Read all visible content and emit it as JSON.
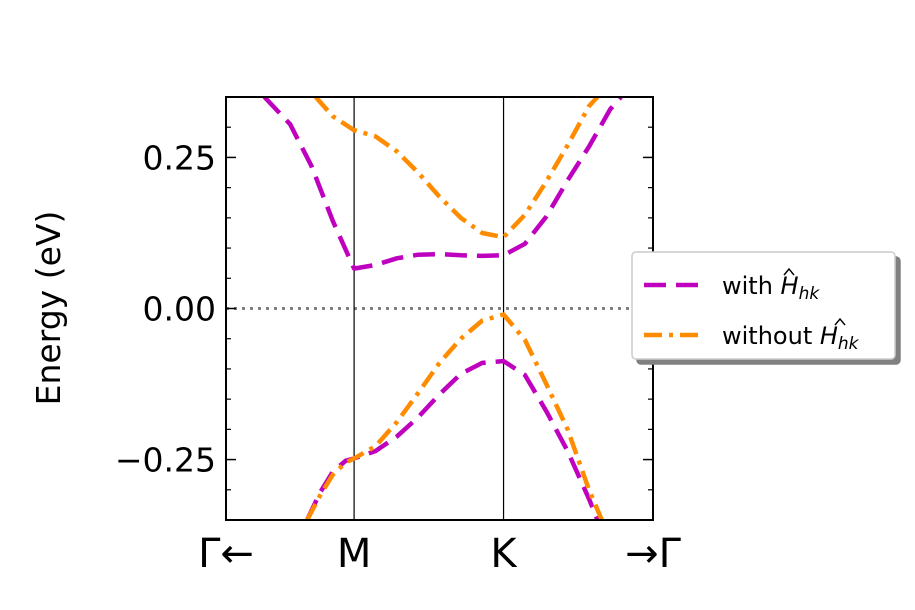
{
  "chart_data": {
    "type": "line",
    "title": "",
    "xlabel": "",
    "ylabel": "Energy (eV)",
    "ylim": [
      -0.35,
      0.35
    ],
    "xlim": [
      0,
      1
    ],
    "yticks": [
      -0.25,
      0.0,
      0.25
    ],
    "ytick_labels": [
      "−0.25",
      "0.00",
      "0.25"
    ],
    "xticks": [
      {
        "x": 0.0,
        "label": "Γ←"
      },
      {
        "x": 0.3,
        "label": "M"
      },
      {
        "x": 0.65,
        "label": "K"
      },
      {
        "x": 1.0,
        "label": "→Γ"
      }
    ],
    "vlines": [
      0.3,
      0.65
    ],
    "hline": {
      "y": 0.0,
      "style": "dotted",
      "color": "#808080"
    },
    "grid": false,
    "legend_location": "right, outside plot",
    "legend_labels": [
      {
        "pre": "with ",
        "sym": "H",
        "sub": "hk"
      },
      {
        "pre": "without ",
        "sym": "H",
        "sub": "hk"
      }
    ],
    "series": [
      {
        "name": "with H_hk",
        "color": "#bf00bf",
        "dash": "dashed",
        "bands": [
          {
            "x": [
              0.09,
              0.15,
              0.2,
              0.25,
              0.3,
              0.35,
              0.4,
              0.45,
              0.5,
              0.55,
              0.6,
              0.65,
              0.7,
              0.75,
              0.8,
              0.85,
              0.9,
              0.925
            ],
            "y": [
              0.35,
              0.305,
              0.236,
              0.145,
              0.066,
              0.072,
              0.083,
              0.089,
              0.09,
              0.088,
              0.087,
              0.088,
              0.107,
              0.152,
              0.212,
              0.268,
              0.33,
              0.35
            ]
          },
          {
            "x": [
              0.19,
              0.22,
              0.25,
              0.28,
              0.3,
              0.35,
              0.4,
              0.45,
              0.5,
              0.55,
              0.6,
              0.65,
              0.7,
              0.75,
              0.8,
              0.85,
              0.87
            ],
            "y": [
              -0.35,
              -0.305,
              -0.27,
              -0.252,
              -0.248,
              -0.236,
              -0.212,
              -0.18,
              -0.142,
              -0.108,
              -0.09,
              -0.087,
              -0.11,
              -0.17,
              -0.236,
              -0.315,
              -0.35
            ]
          }
        ]
      },
      {
        "name": "without H_hk",
        "color": "#ff8c00",
        "dash": "dashdot",
        "bands": [
          {
            "x": [
              0.21,
              0.25,
              0.3,
              0.35,
              0.4,
              0.45,
              0.5,
              0.55,
              0.6,
              0.65,
              0.7,
              0.75,
              0.8,
              0.85,
              0.87
            ],
            "y": [
              0.35,
              0.318,
              0.295,
              0.285,
              0.26,
              0.225,
              0.185,
              0.15,
              0.125,
              0.118,
              0.155,
              0.21,
              0.27,
              0.335,
              0.35
            ]
          },
          {
            "x": [
              0.19,
              0.22,
              0.25,
              0.28,
              0.3,
              0.35,
              0.4,
              0.45,
              0.5,
              0.55,
              0.6,
              0.65,
              0.7,
              0.75,
              0.8,
              0.85,
              0.88
            ],
            "y": [
              -0.35,
              -0.31,
              -0.275,
              -0.255,
              -0.248,
              -0.228,
              -0.188,
              -0.14,
              -0.09,
              -0.05,
              -0.02,
              -0.01,
              -0.052,
              -0.125,
              -0.2,
              -0.3,
              -0.35
            ]
          }
        ]
      }
    ]
  }
}
